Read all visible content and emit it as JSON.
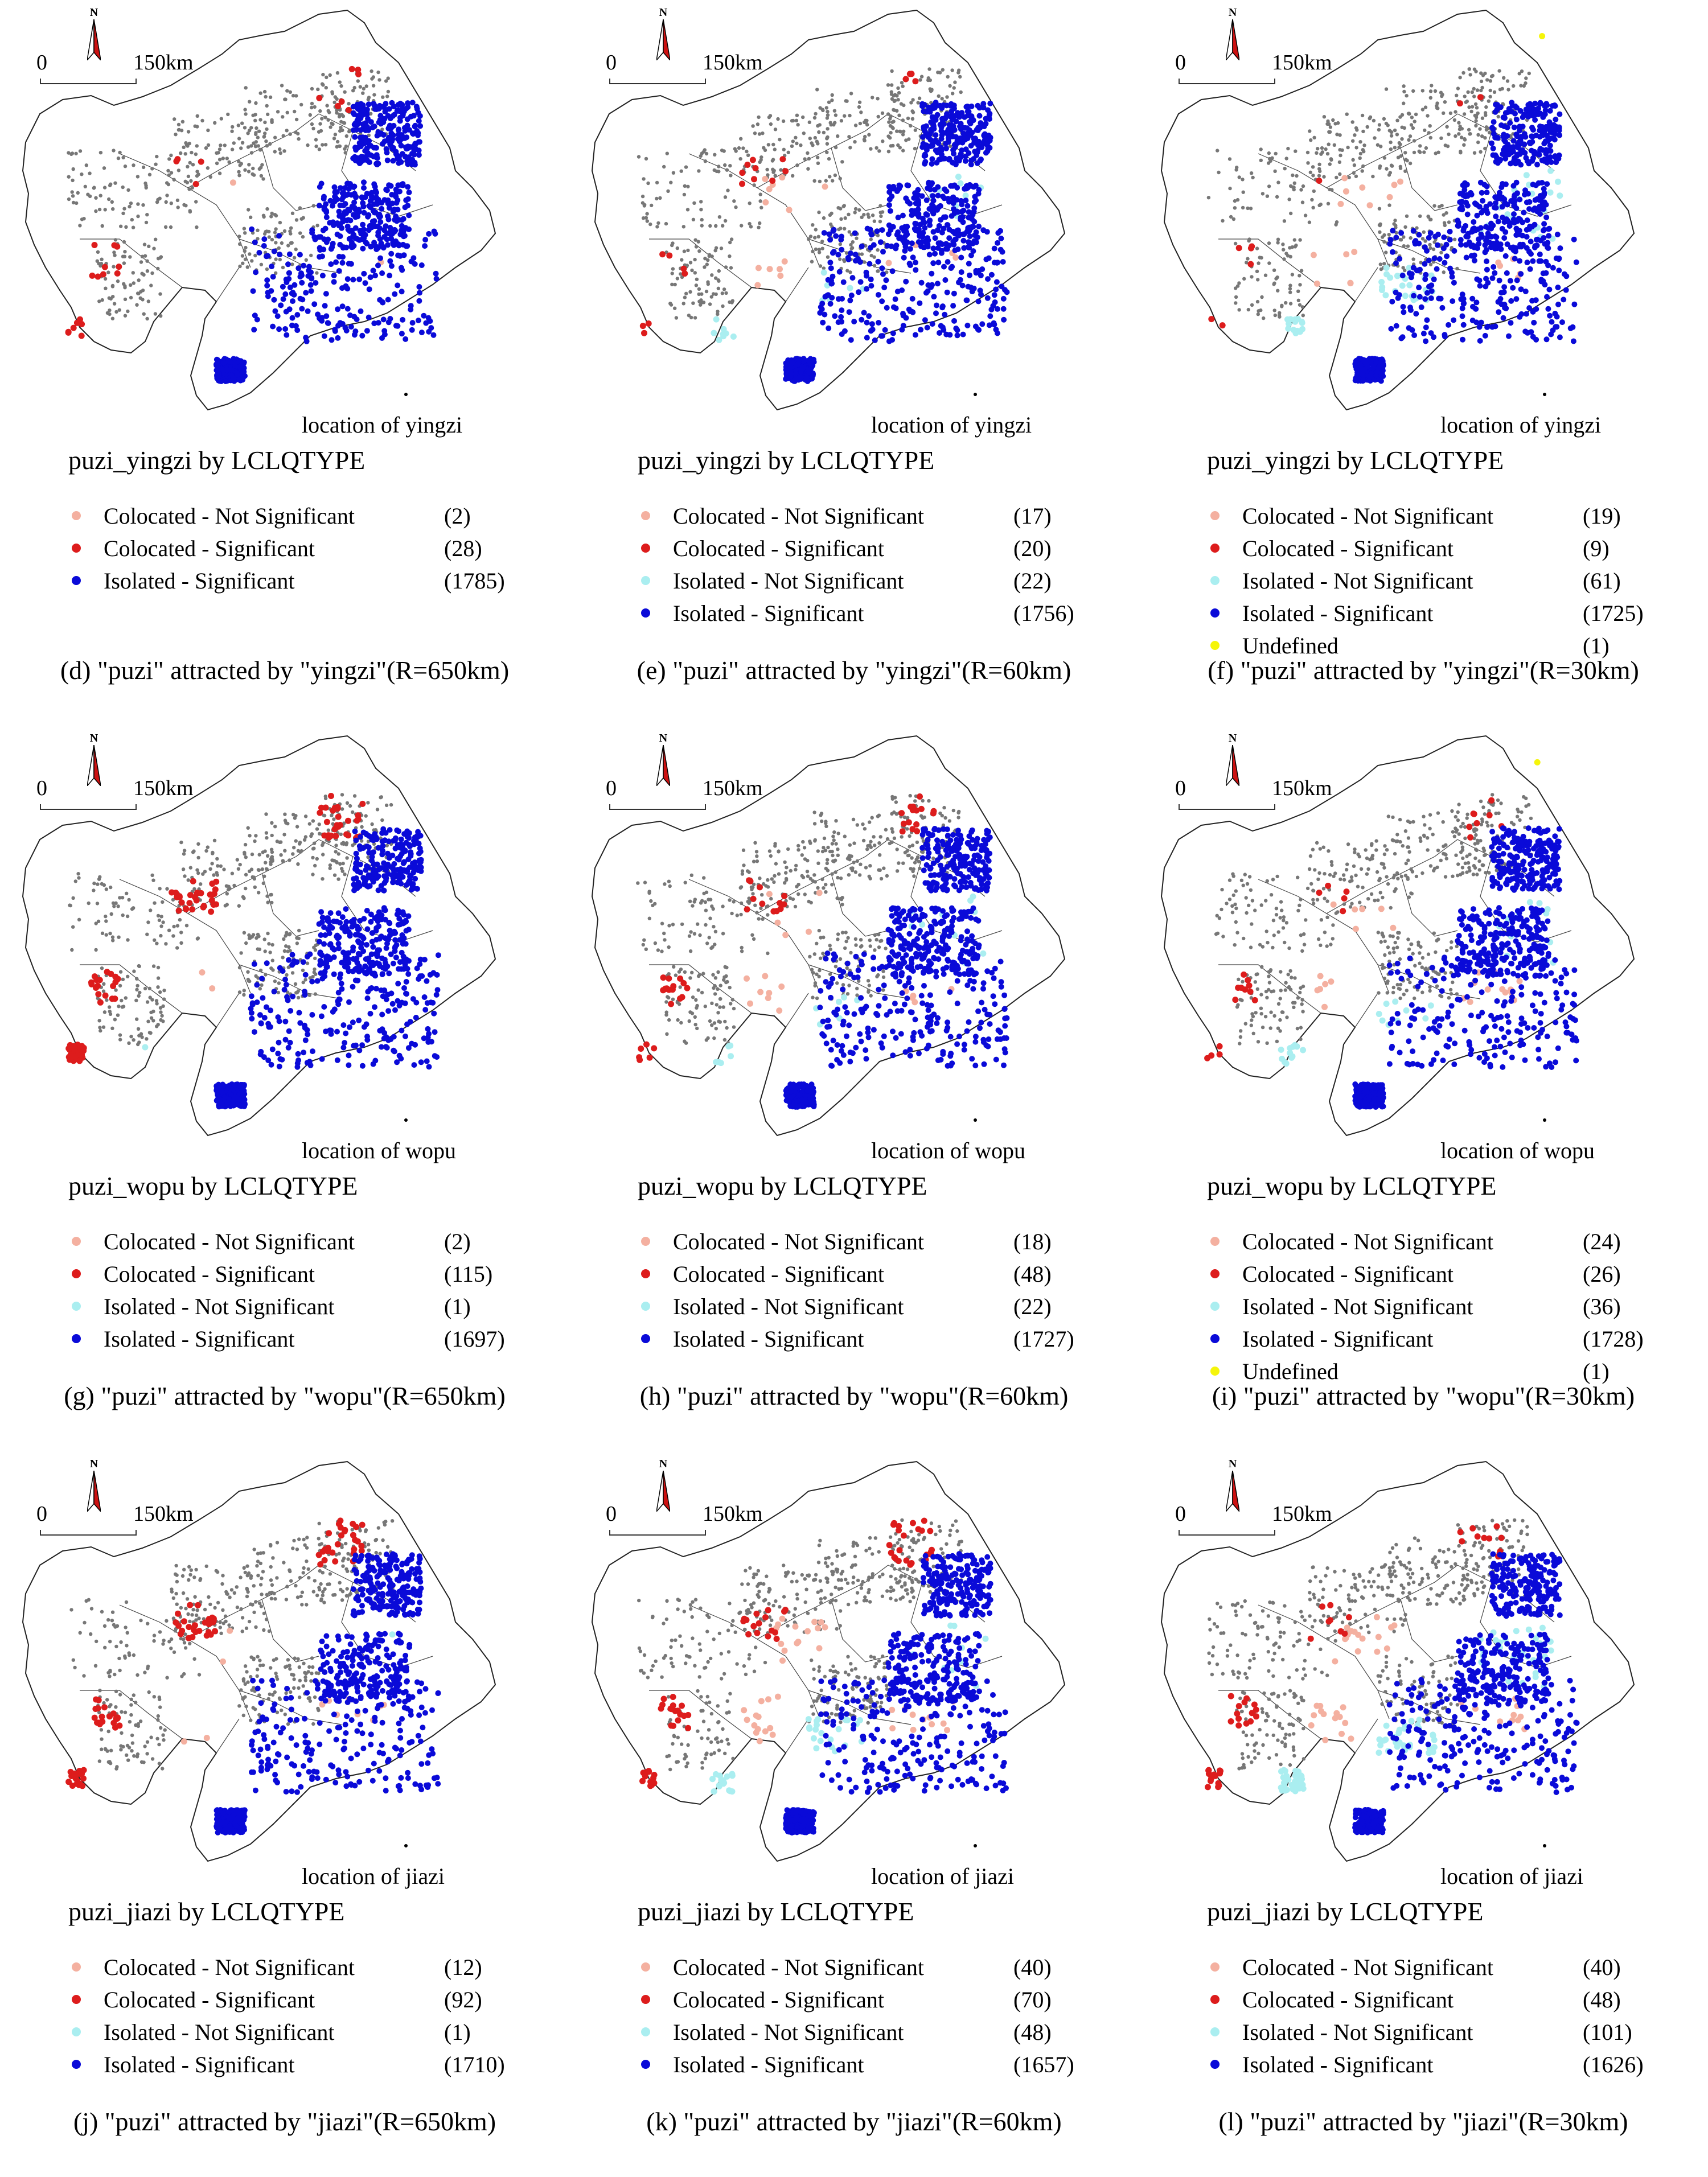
{
  "colors": {
    "Colocated - Not Significant": "#f4b0a0",
    "Colocated - Significant": "#dd1c1c",
    "Isolated - Not Significant": "#aaeef0",
    "Isolated - Significant": "#0a0ad8",
    "Undefined": "#f5f50a",
    "background_points": "#777777"
  },
  "map": {
    "north_label": "N",
    "scale_start": "0",
    "scale_label": "150km"
  },
  "panels": [
    {
      "title": "puzi_yingzi by LCLQTYPE",
      "location": "location of yingzi",
      "caption": "(d) \"puzi\" attracted by \"yingzi\"(R=650km)",
      "legend": [
        {
          "label": "Colocated - Not Significant",
          "count": "(2)"
        },
        {
          "label": "Colocated - Significant",
          "count": "(28)"
        },
        {
          "label": "Isolated - Significant",
          "count": "(1785)"
        }
      ]
    },
    {
      "title": "puzi_yingzi by LCLQTYPE",
      "location": "location of yingzi",
      "caption": "(e) \"puzi\" attracted by \"yingzi\"(R=60km)",
      "legend": [
        {
          "label": "Colocated - Not Significant",
          "count": "(17)"
        },
        {
          "label": "Colocated - Significant",
          "count": "(20)"
        },
        {
          "label": "Isolated - Not Significant",
          "count": "(22)"
        },
        {
          "label": "Isolated - Significant",
          "count": "(1756)"
        }
      ]
    },
    {
      "title": "puzi_yingzi by LCLQTYPE",
      "location": "location of yingzi",
      "caption": "(f) \"puzi\" attracted by \"yingzi\"(R=30km)",
      "legend": [
        {
          "label": "Colocated - Not Significant",
          "count": "(19)"
        },
        {
          "label": "Colocated - Significant",
          "count": "(9)"
        },
        {
          "label": "Isolated - Not Significant",
          "count": "(61)"
        },
        {
          "label": "Isolated - Significant",
          "count": "(1725)"
        },
        {
          "label": "Undefined",
          "count": "(1)"
        }
      ]
    },
    {
      "title": "puzi_wopu by LCLQTYPE",
      "location": "location of wopu",
      "caption": "(g) \"puzi\" attracted by \"wopu\"(R=650km)",
      "legend": [
        {
          "label": "Colocated - Not Significant",
          "count": "(2)"
        },
        {
          "label": "Colocated - Significant",
          "count": "(115)"
        },
        {
          "label": "Isolated - Not Significant",
          "count": "(1)"
        },
        {
          "label": "Isolated - Significant",
          "count": "(1697)"
        }
      ]
    },
    {
      "title": "puzi_wopu by LCLQTYPE",
      "location": "location of wopu",
      "caption": "(h) \"puzi\" attracted by \"wopu\"(R=60km)",
      "legend": [
        {
          "label": "Colocated - Not Significant",
          "count": "(18)"
        },
        {
          "label": "Colocated - Significant",
          "count": "(48)"
        },
        {
          "label": "Isolated - Not Significant",
          "count": "(22)"
        },
        {
          "label": "Isolated - Significant",
          "count": "(1727)"
        }
      ]
    },
    {
      "title": "puzi_wopu by LCLQTYPE",
      "location": "location of wopu",
      "caption": "(i) \"puzi\" attracted by \"wopu\"(R=30km)",
      "legend": [
        {
          "label": "Colocated - Not Significant",
          "count": "(24)"
        },
        {
          "label": "Colocated - Significant",
          "count": "(26)"
        },
        {
          "label": "Isolated - Not Significant",
          "count": "(36)"
        },
        {
          "label": "Isolated - Significant",
          "count": "(1728)"
        },
        {
          "label": "Undefined",
          "count": "(1)"
        }
      ]
    },
    {
      "title": "puzi_jiazi by LCLQTYPE",
      "location": "location of jiazi",
      "caption": "(j) \"puzi\" attracted by \"jiazi\"(R=650km)",
      "legend": [
        {
          "label": "Colocated - Not Significant",
          "count": "(12)"
        },
        {
          "label": "Colocated - Significant",
          "count": "(92)"
        },
        {
          "label": "Isolated - Not Significant",
          "count": "(1)"
        },
        {
          "label": "Isolated - Significant",
          "count": "(1710)"
        }
      ]
    },
    {
      "title": "puzi_jiazi by LCLQTYPE",
      "location": "location of jiazi",
      "caption": "(k) \"puzi\" attracted by \"jiazi\"(R=60km)",
      "legend": [
        {
          "label": "Colocated - Not Significant",
          "count": "(40)"
        },
        {
          "label": "Colocated - Significant",
          "count": "(70)"
        },
        {
          "label": "Isolated - Not Significant",
          "count": "(48)"
        },
        {
          "label": "Isolated - Significant",
          "count": "(1657)"
        }
      ]
    },
    {
      "title": "puzi_jiazi by LCLQTYPE",
      "location": "location of jiazi",
      "caption": "(l) \"puzi\" attracted by \"jiazi\"(R=30km)",
      "legend": [
        {
          "label": "Colocated - Not Significant",
          "count": "(40)"
        },
        {
          "label": "Colocated - Significant",
          "count": "(48)"
        },
        {
          "label": "Isolated - Not Significant",
          "count": "(101)"
        },
        {
          "label": "Isolated - Significant",
          "count": "(1626)"
        }
      ]
    }
  ]
}
